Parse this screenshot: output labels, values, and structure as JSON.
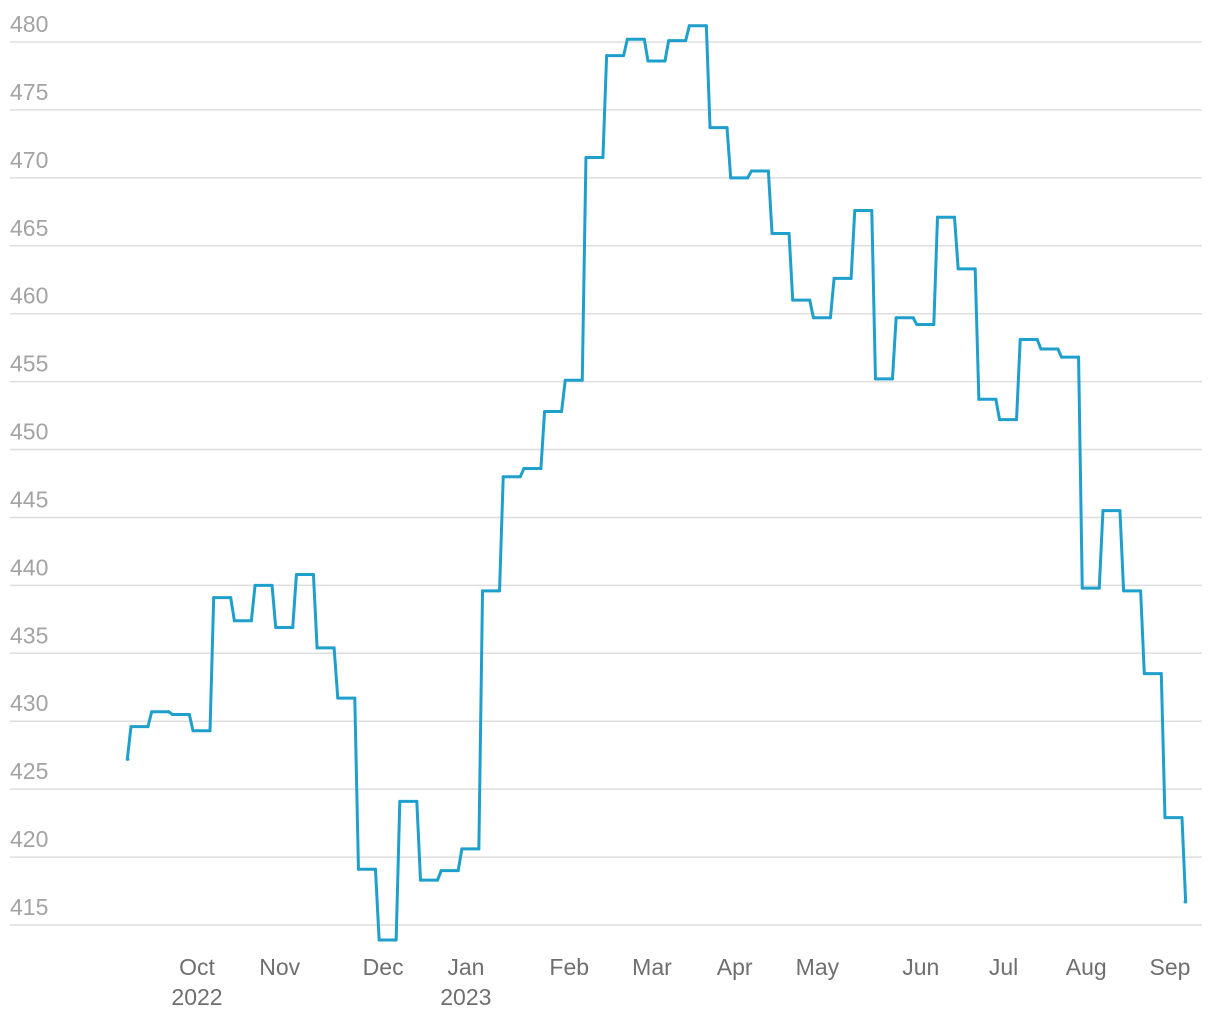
{
  "chart_data": {
    "type": "line",
    "categories": [
      null,
      null,
      null,
      null,
      "Oct\n2022",
      null,
      null,
      null,
      "Nov",
      null,
      null,
      null,
      null,
      "Dec",
      null,
      null,
      null,
      "Jan\n2023",
      null,
      null,
      null,
      null,
      "Feb",
      null,
      null,
      null,
      "Mar",
      null,
      null,
      null,
      "Apr",
      null,
      null,
      null,
      "May",
      null,
      null,
      null,
      null,
      "Jun",
      null,
      null,
      null,
      "Jul",
      null,
      null,
      null,
      "Aug",
      null,
      null,
      null,
      null,
      "Sep"
    ],
    "series": [
      {
        "color": "#1f9fcc",
        "values": [
          427.2,
          429.6,
          430.7,
          430.5,
          429.3,
          439.1,
          437.4,
          440.0,
          436.9,
          440.8,
          435.4,
          431.7,
          419.1,
          413.9,
          424.1,
          418.3,
          419.0,
          420.6,
          439.6,
          448.0,
          448.6,
          452.8,
          455.1,
          471.5,
          479.0,
          480.2,
          478.6,
          480.1,
          481.2,
          473.7,
          470.0,
          470.5,
          465.9,
          461.0,
          459.7,
          462.6,
          467.6,
          455.2,
          459.7,
          459.2,
          467.1,
          463.3,
          453.7,
          452.2,
          458.1,
          457.4,
          456.8,
          439.8,
          445.5,
          439.6,
          433.5,
          422.9,
          416.7
        ]
      }
    ],
    "ylim": [
      413,
      482
    ],
    "yticks": [
      415,
      420,
      425,
      430,
      435,
      440,
      445,
      450,
      455,
      460,
      465,
      470,
      475,
      480
    ],
    "grid": true
  }
}
